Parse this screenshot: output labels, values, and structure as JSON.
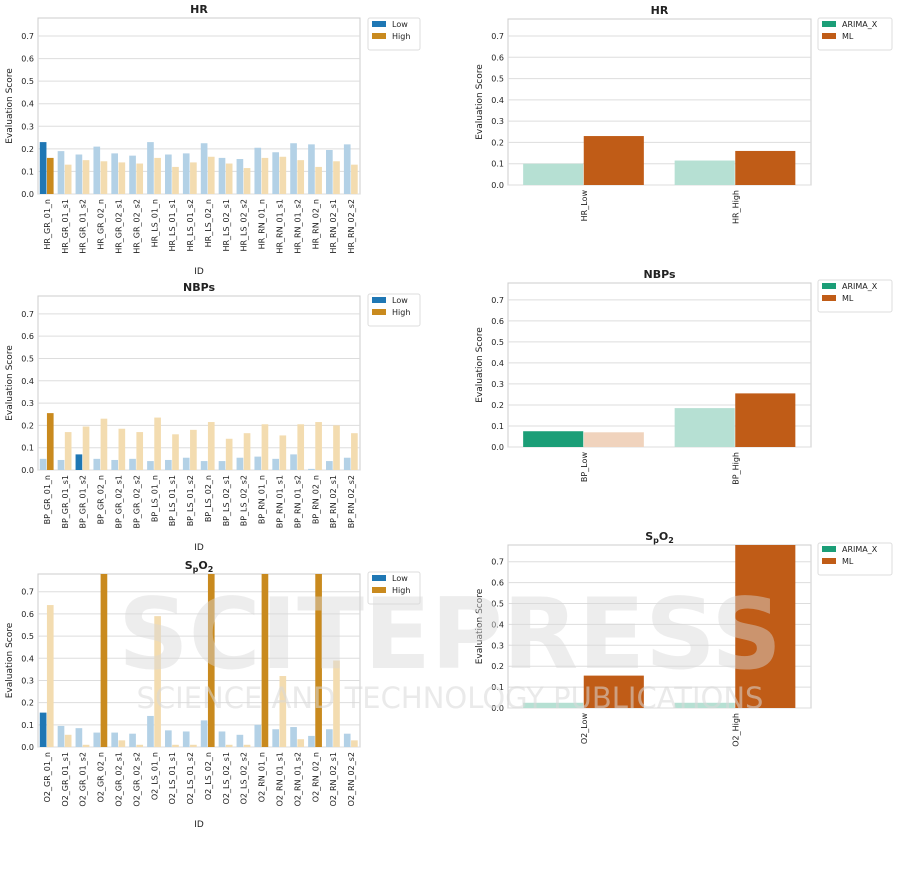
{
  "watermark": {
    "brand": "SCITEPRESS",
    "tagline": "SCIENCE AND TECHNOLOGY PUBLICATIONS"
  },
  "colors": {
    "low": "#1f77b4",
    "high": "#c98a1e",
    "low_faded": "#b3d1e6",
    "high_faded": "#f3dcb0",
    "arima": "#1b9e77",
    "ml": "#c05c17",
    "arima_faded": "#b6e0d3",
    "ml_faded": "#f0d3bd"
  },
  "chart_data": [
    {
      "type": "bar",
      "title": "HR",
      "xlabel": "ID",
      "ylabel": "Evaluation Score",
      "ylim": [
        0,
        0.78
      ],
      "yticks": [
        "0.0",
        "0.1",
        "0.2",
        "0.3",
        "0.4",
        "0.5",
        "0.6",
        "0.7"
      ],
      "categories": [
        "HR_GR_01_n",
        "HR_GR_01_s1",
        "HR_GR_01_s2",
        "HR_GR_02_n",
        "HR_GR_02_s1",
        "HR_GR_02_s2",
        "HR_LS_01_n",
        "HR_LS_01_s1",
        "HR_LS_01_s2",
        "HR_LS_02_n",
        "HR_LS_02_s1",
        "HR_LS_02_s2",
        "HR_RN_01_n",
        "HR_RN_01_s1",
        "HR_RN_01_s2",
        "HR_RN_02_n",
        "HR_RN_02_s1",
        "HR_RN_02_s2"
      ],
      "highlight_index": 0,
      "legend": [
        "Low",
        "High"
      ],
      "series": [
        {
          "name": "Low",
          "values": [
            0.23,
            0.19,
            0.175,
            0.21,
            0.18,
            0.17,
            0.23,
            0.175,
            0.18,
            0.225,
            0.16,
            0.155,
            0.205,
            0.185,
            0.225,
            0.22,
            0.195,
            0.22
          ]
        },
        {
          "name": "High",
          "values": [
            0.16,
            0.13,
            0.15,
            0.145,
            0.14,
            0.135,
            0.16,
            0.12,
            0.14,
            0.165,
            0.135,
            0.115,
            0.16,
            0.165,
            0.15,
            0.12,
            0.145,
            0.13
          ]
        }
      ]
    },
    {
      "type": "bar",
      "title": "NBPs",
      "xlabel": "ID",
      "ylabel": "Evaluation Score",
      "ylim": [
        0,
        0.78
      ],
      "yticks": [
        "0.0",
        "0.1",
        "0.2",
        "0.3",
        "0.4",
        "0.5",
        "0.6",
        "0.7"
      ],
      "categories": [
        "BP_GR_01_n",
        "BP_GR_01_s1",
        "BP_GR_01_s2",
        "BP_GR_02_n",
        "BP_GR_02_s1",
        "BP_GR_02_s2",
        "BP_LS_01_n",
        "BP_LS_01_s1",
        "BP_LS_01_s2",
        "BP_LS_02_n",
        "BP_LS_02_s1",
        "BP_LS_02_s2",
        "BP_RN_01_n",
        "BP_RN_01_s1",
        "BP_RN_01_s2",
        "BP_RN_02_n",
        "BP_RN_02_s1",
        "BP_RN_02_s2"
      ],
      "highlight_low": [
        2
      ],
      "highlight_high": [
        0
      ],
      "legend": [
        "Low",
        "High"
      ],
      "series": [
        {
          "name": "Low",
          "values": [
            0.05,
            0.045,
            0.07,
            0.05,
            0.045,
            0.05,
            0.04,
            0.045,
            0.055,
            0.04,
            0.04,
            0.055,
            0.06,
            0.05,
            0.07,
            0.005,
            0.04,
            0.055
          ]
        },
        {
          "name": "High",
          "values": [
            0.255,
            0.17,
            0.195,
            0.23,
            0.185,
            0.17,
            0.235,
            0.16,
            0.18,
            0.215,
            0.14,
            0.165,
            0.205,
            0.155,
            0.205,
            0.215,
            0.2,
            0.165
          ]
        }
      ]
    },
    {
      "type": "bar",
      "title": "SpO2",
      "xlabel": "ID",
      "ylabel": "Evaluation Score",
      "ylim": [
        0,
        0.78
      ],
      "yticks": [
        "0.0",
        "0.1",
        "0.2",
        "0.3",
        "0.4",
        "0.5",
        "0.6",
        "0.7"
      ],
      "categories": [
        "O2_GR_01_n",
        "O2_GR_01_s1",
        "O2_GR_01_s2",
        "O2_GR_02_n",
        "O2_GR_02_s1",
        "O2_GR_02_s2",
        "O2_LS_01_n",
        "O2_LS_01_s1",
        "O2_LS_01_s2",
        "O2_LS_02_n",
        "O2_LS_02_s1",
        "O2_LS_02_s2",
        "O2_RN_01_n",
        "O2_RN_01_s1",
        "O2_RN_01_s2",
        "O2_RN_02_n",
        "O2_RN_02_s1",
        "O2_RN_02_s2"
      ],
      "highlight_low": [
        0
      ],
      "highlight_high": [
        3,
        9,
        12,
        15
      ],
      "legend": [
        "Low",
        "High"
      ],
      "series": [
        {
          "name": "Low",
          "values": [
            0.155,
            0.095,
            0.085,
            0.065,
            0.065,
            0.06,
            0.14,
            0.075,
            0.07,
            0.12,
            0.07,
            0.055,
            0.1,
            0.08,
            0.09,
            0.05,
            0.08,
            0.06
          ]
        },
        {
          "name": "High",
          "values": [
            0.64,
            0.055,
            0.01,
            0.78,
            0.03,
            0.01,
            0.59,
            0.01,
            0.01,
            0.78,
            0.01,
            0.01,
            0.78,
            0.32,
            0.035,
            0.78,
            0.39,
            0.03
          ]
        }
      ]
    },
    {
      "type": "bar",
      "title": "HR",
      "xlabel": "",
      "ylabel": "Evaluation Score",
      "ylim": [
        0,
        0.78
      ],
      "yticks": [
        "0.0",
        "0.1",
        "0.2",
        "0.3",
        "0.4",
        "0.5",
        "0.6",
        "0.7"
      ],
      "categories": [
        "HR_Low",
        "HR_High"
      ],
      "legend": [
        "ARIMA_X",
        "ML"
      ],
      "series": [
        {
          "name": "ARIMA_X",
          "values": [
            0.1,
            0.115
          ],
          "highlight": [
            false,
            false
          ]
        },
        {
          "name": "ML",
          "values": [
            0.23,
            0.16
          ],
          "highlight": [
            true,
            true
          ]
        }
      ]
    },
    {
      "type": "bar",
      "title": "NBPs",
      "xlabel": "",
      "ylabel": "Evaluation Score",
      "ylim": [
        0,
        0.78
      ],
      "yticks": [
        "0.0",
        "0.1",
        "0.2",
        "0.3",
        "0.4",
        "0.5",
        "0.6",
        "0.7"
      ],
      "categories": [
        "BP_Low",
        "BP_High"
      ],
      "legend": [
        "ARIMA_X",
        "ML"
      ],
      "series": [
        {
          "name": "ARIMA_X",
          "values": [
            0.075,
            0.185
          ],
          "highlight": [
            true,
            false
          ]
        },
        {
          "name": "ML",
          "values": [
            0.07,
            0.255
          ],
          "highlight": [
            false,
            true
          ]
        }
      ]
    },
    {
      "type": "bar",
      "title": "SpO2",
      "xlabel": "",
      "ylabel": "Evaluation Score",
      "ylim": [
        0,
        0.78
      ],
      "yticks": [
        "0.0",
        "0.1",
        "0.2",
        "0.3",
        "0.4",
        "0.5",
        "0.6",
        "0.7"
      ],
      "categories": [
        "O2_Low",
        "O2_High"
      ],
      "legend": [
        "ARIMA_X",
        "ML"
      ],
      "series": [
        {
          "name": "ARIMA_X",
          "values": [
            0.025,
            0.025
          ],
          "highlight": [
            false,
            false
          ]
        },
        {
          "name": "ML",
          "values": [
            0.155,
            0.78
          ],
          "highlight": [
            true,
            true
          ]
        }
      ]
    }
  ]
}
